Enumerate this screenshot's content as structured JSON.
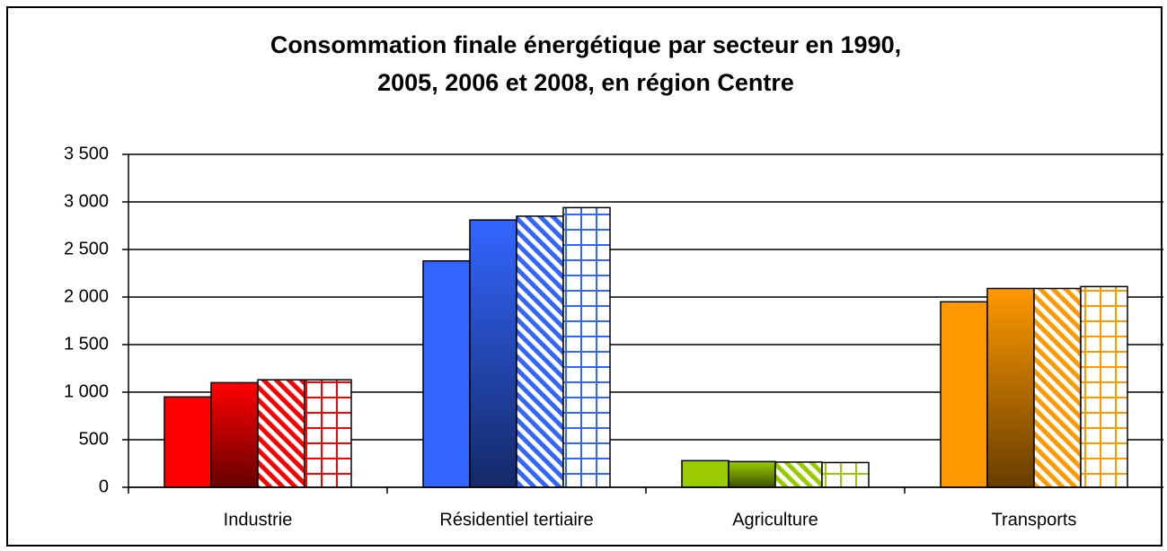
{
  "chart_data": {
    "type": "bar",
    "title": "Consommation finale énergétique par secteur en 1990,",
    "subtitle": "2005, 2006 et 2008, en région Centre",
    "categories": [
      "Industrie",
      "Résidentiel tertiaire",
      "Agriculture",
      "Transports"
    ],
    "category_colors": [
      "#ff0000",
      "#3366ff",
      "#99cc00",
      "#ff9900"
    ],
    "series": [
      {
        "pattern": "solid",
        "values": [
          950,
          2380,
          280,
          1950
        ]
      },
      {
        "pattern": "gradient",
        "values": [
          1100,
          2810,
          270,
          2090
        ]
      },
      {
        "pattern": "diagonal",
        "values": [
          1130,
          2850,
          265,
          2090
        ]
      },
      {
        "pattern": "grid",
        "values": [
          1130,
          2940,
          260,
          2110
        ]
      }
    ],
    "ylim": [
      0,
      3500
    ],
    "yticks": [
      0,
      500,
      {
        "value": 1000,
        "label": "1 000"
      },
      {
        "value": 1500,
        "label": "1 500"
      },
      {
        "value": 2000,
        "label": "2 000"
      },
      {
        "value": 2500,
        "label": "2 500"
      },
      {
        "value": 3000,
        "label": "3 000"
      },
      {
        "value": 3500,
        "label": "3 500"
      }
    ],
    "grid": true
  }
}
